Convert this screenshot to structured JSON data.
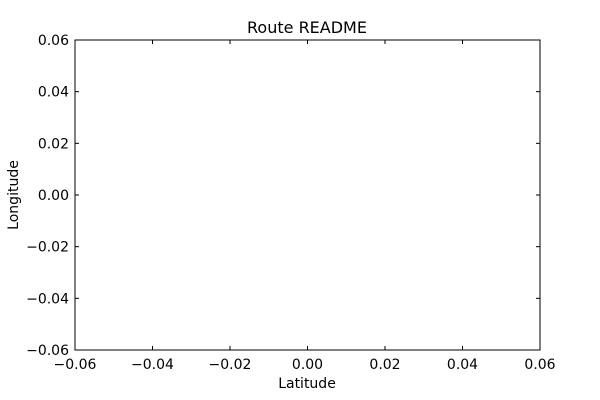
{
  "chart_data": {
    "type": "line",
    "title": "Route README",
    "xlabel": "Latitude",
    "ylabel": "Longitude",
    "xlim": [
      -0.06,
      0.06
    ],
    "ylim": [
      -0.06,
      0.06
    ],
    "x_ticks": [
      -0.06,
      -0.04,
      -0.02,
      0.0,
      0.02,
      0.04,
      0.06
    ],
    "y_ticks": [
      -0.06,
      -0.04,
      -0.02,
      0.0,
      0.02,
      0.04,
      0.06
    ],
    "x_tick_labels": [
      "−0.06",
      "−0.04",
      "−0.02",
      "0.00",
      "0.02",
      "0.04",
      "0.06"
    ],
    "y_tick_labels": [
      "−0.06",
      "−0.04",
      "−0.02",
      "0.00",
      "0.02",
      "0.04",
      "0.06"
    ],
    "series": [],
    "grid": false,
    "legend": "none",
    "colors": {
      "axes": "#000000",
      "background": "#ffffff"
    }
  }
}
